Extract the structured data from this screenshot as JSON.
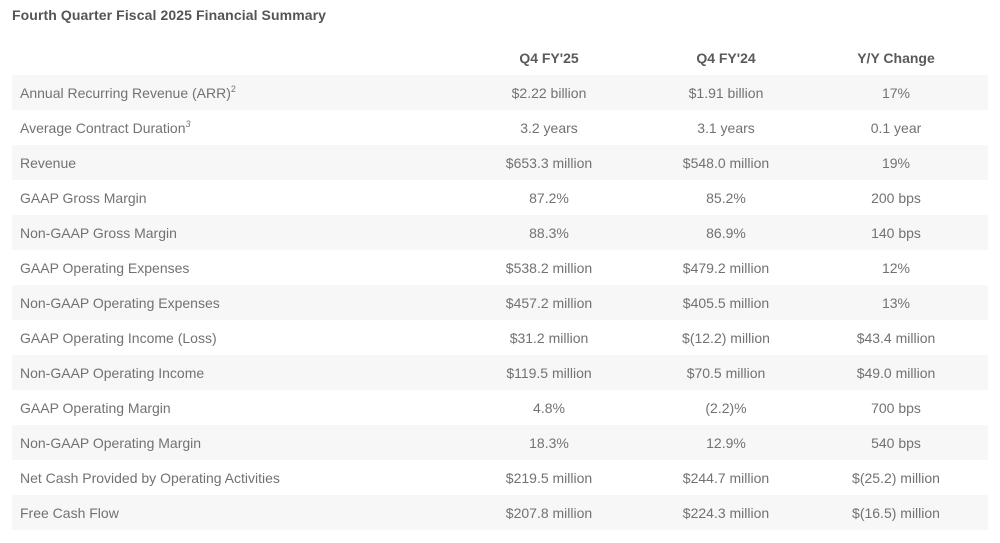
{
  "title": "Fourth Quarter Fiscal 2025 Financial Summary",
  "table": {
    "headers": [
      "",
      "Q4 FY'25",
      "Q4 FY'24",
      "Y/Y Change"
    ],
    "rows": [
      {
        "label": "Annual Recurring Revenue (ARR)",
        "footnote": "2",
        "q4_fy25": "$2.22 billion",
        "q4_fy24": "$1.91 billion",
        "yy_change": "17%"
      },
      {
        "label": "Average Contract Duration",
        "footnote": "3",
        "q4_fy25": "3.2 years",
        "q4_fy24": "3.1 years",
        "yy_change": "0.1 year"
      },
      {
        "label": "Revenue",
        "footnote": "",
        "q4_fy25": "$653.3 million",
        "q4_fy24": "$548.0 million",
        "yy_change": "19%"
      },
      {
        "label": "GAAP Gross Margin",
        "footnote": "",
        "q4_fy25": "87.2%",
        "q4_fy24": "85.2%",
        "yy_change": "200 bps"
      },
      {
        "label": "Non-GAAP Gross Margin",
        "footnote": "",
        "q4_fy25": "88.3%",
        "q4_fy24": "86.9%",
        "yy_change": "140 bps"
      },
      {
        "label": "GAAP Operating Expenses",
        "footnote": "",
        "q4_fy25": "$538.2 million",
        "q4_fy24": "$479.2 million",
        "yy_change": "12%"
      },
      {
        "label": "Non-GAAP Operating Expenses",
        "footnote": "",
        "q4_fy25": "$457.2 million",
        "q4_fy24": "$405.5 million",
        "yy_change": "13%"
      },
      {
        "label": "GAAP Operating Income (Loss)",
        "footnote": "",
        "q4_fy25": "$31.2 million",
        "q4_fy24": "$(12.2) million",
        "yy_change": "$43.4 million"
      },
      {
        "label": "Non-GAAP Operating Income",
        "footnote": "",
        "q4_fy25": "$119.5 million",
        "q4_fy24": "$70.5 million",
        "yy_change": "$49.0 million"
      },
      {
        "label": "GAAP Operating Margin",
        "footnote": "",
        "q4_fy25": "4.8%",
        "q4_fy24": "(2.2)%",
        "yy_change": "700 bps"
      },
      {
        "label": "Non-GAAP Operating Margin",
        "footnote": "",
        "q4_fy25": "18.3%",
        "q4_fy24": "12.9%",
        "yy_change": "540 bps"
      },
      {
        "label": "Net Cash Provided by Operating Activities",
        "footnote": "",
        "q4_fy25": "$219.5 million",
        "q4_fy24": "$244.7 million",
        "yy_change": "$(25.2) million"
      },
      {
        "label": "Free Cash Flow",
        "footnote": "",
        "q4_fy25": "$207.8 million",
        "q4_fy24": "$224.3 million",
        "yy_change": "$(16.5) million"
      }
    ]
  },
  "colors": {
    "stripe": "#f7f7f7",
    "text": "#727272",
    "heading": "#555555"
  }
}
